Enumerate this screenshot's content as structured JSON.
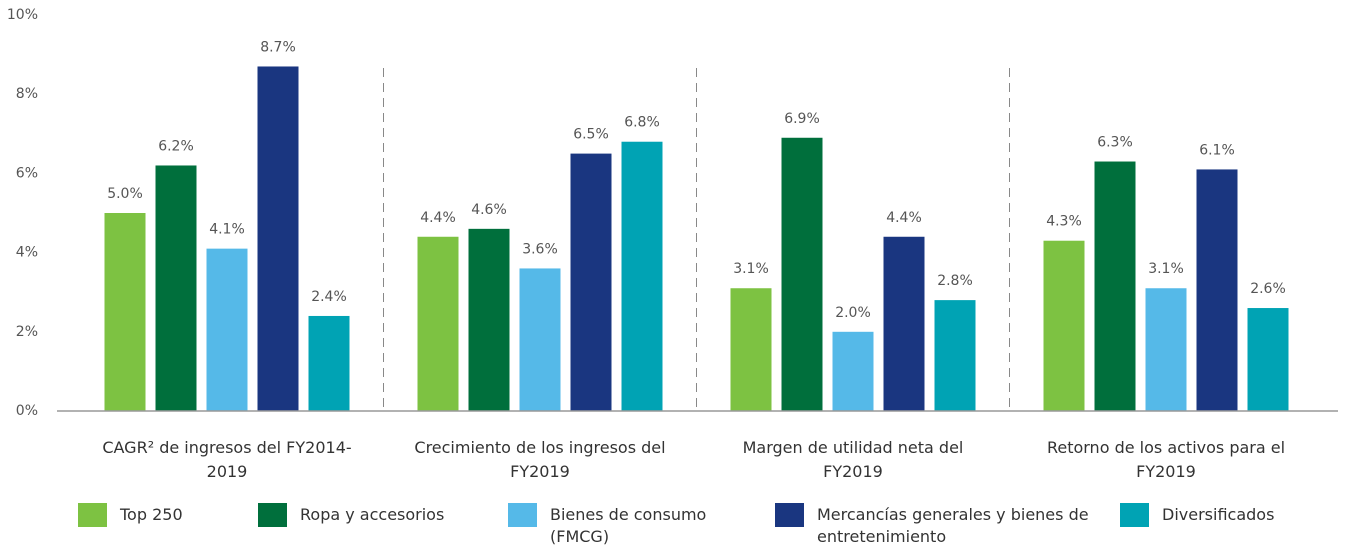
{
  "chart_data": {
    "type": "bar",
    "categories": [
      "CAGR² de ingresos del FY2014-2019",
      "Crecimiento de los ingresos del FY2019",
      "Margen de  utilidad neta del FY2019",
      "Retorno de los activos para el FY2019"
    ],
    "series": [
      {
        "name": "Top 250",
        "color": "#7dc242",
        "values": [
          5.0,
          4.4,
          3.1,
          4.3
        ],
        "value_labels": [
          "5.0%",
          "4.4%",
          "3.1%",
          "4.3%"
        ]
      },
      {
        "name": "Ropa y accesorios",
        "color": "#006f3c",
        "values": [
          6.2,
          4.6,
          6.9,
          6.3
        ],
        "value_labels": [
          "6.2%",
          "4.6%",
          "6.9%",
          "6.3%"
        ]
      },
      {
        "name": "Bienes de consumo (FMCG)",
        "color": "#55b9e8",
        "values": [
          4.1,
          3.6,
          2.0,
          3.1
        ],
        "value_labels": [
          "4.1%",
          "3.6%",
          "2.0%",
          "3.1%"
        ]
      },
      {
        "name": "Mercancías generales y bienes de entretenimiento",
        "color": "#1a3680",
        "values": [
          8.7,
          6.5,
          4.4,
          6.1
        ],
        "value_labels": [
          "8.7%",
          "6.5%",
          "4.4%",
          "6.1%"
        ]
      },
      {
        "name": "Diversificados",
        "color": "#00a3b4",
        "values": [
          2.4,
          6.8,
          2.8,
          2.6
        ],
        "value_labels": [
          "2.4%",
          "6.8%",
          "2.8%",
          "2.6%"
        ]
      }
    ],
    "ylim": [
      0,
      10
    ],
    "yticks": [
      {
        "value": 0,
        "label": "0%"
      },
      {
        "value": 2,
        "label": "2%"
      },
      {
        "value": 4,
        "label": "4%"
      },
      {
        "value": 6,
        "label": "6%"
      },
      {
        "value": 8,
        "label": "8%"
      },
      {
        "value": 10,
        "label": "10%"
      }
    ],
    "grid": false,
    "legend": "bottom"
  }
}
